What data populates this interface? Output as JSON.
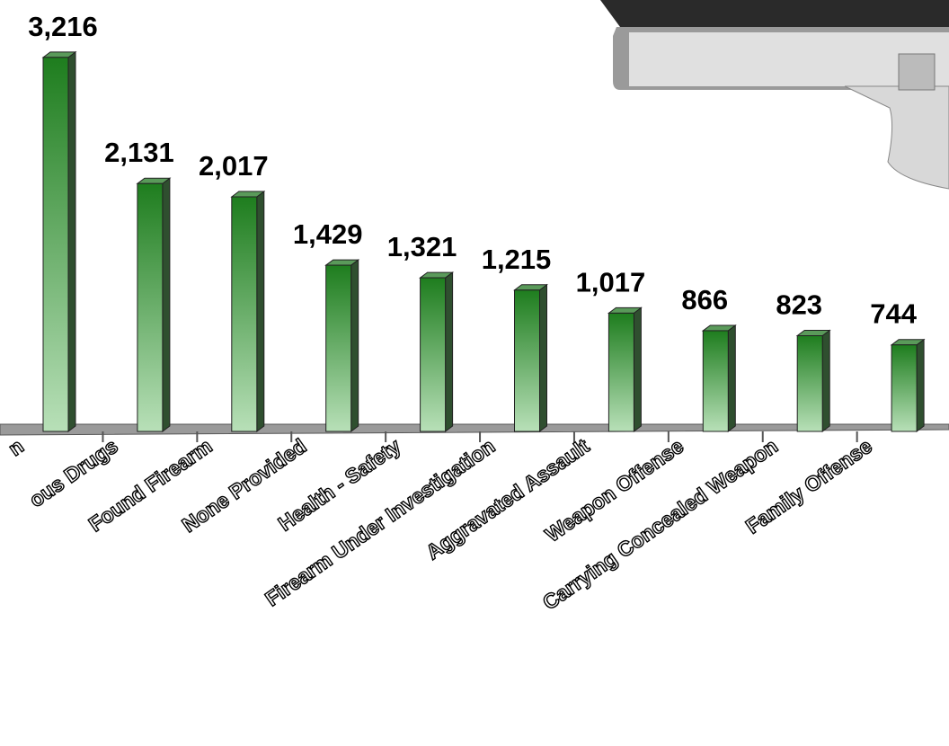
{
  "chart_data": {
    "type": "bar",
    "categories": [
      "n",
      "ous Drugs",
      "Found Firearm",
      "None Provided",
      "Health - Safety",
      "Firearm Under Investigation",
      "Aggravated Assault",
      "Weapon Offense",
      "Carrying Concealed Weapon",
      "Family Offense"
    ],
    "values": [
      3216,
      2131,
      2017,
      1429,
      1321,
      1215,
      1017,
      866,
      823,
      744
    ],
    "value_labels": [
      "3,216",
      "2,131",
      "2,017",
      "1,429",
      "1,321",
      "1,215",
      "1,017",
      "866",
      "823",
      "744"
    ],
    "color": "#1e7d1e"
  }
}
